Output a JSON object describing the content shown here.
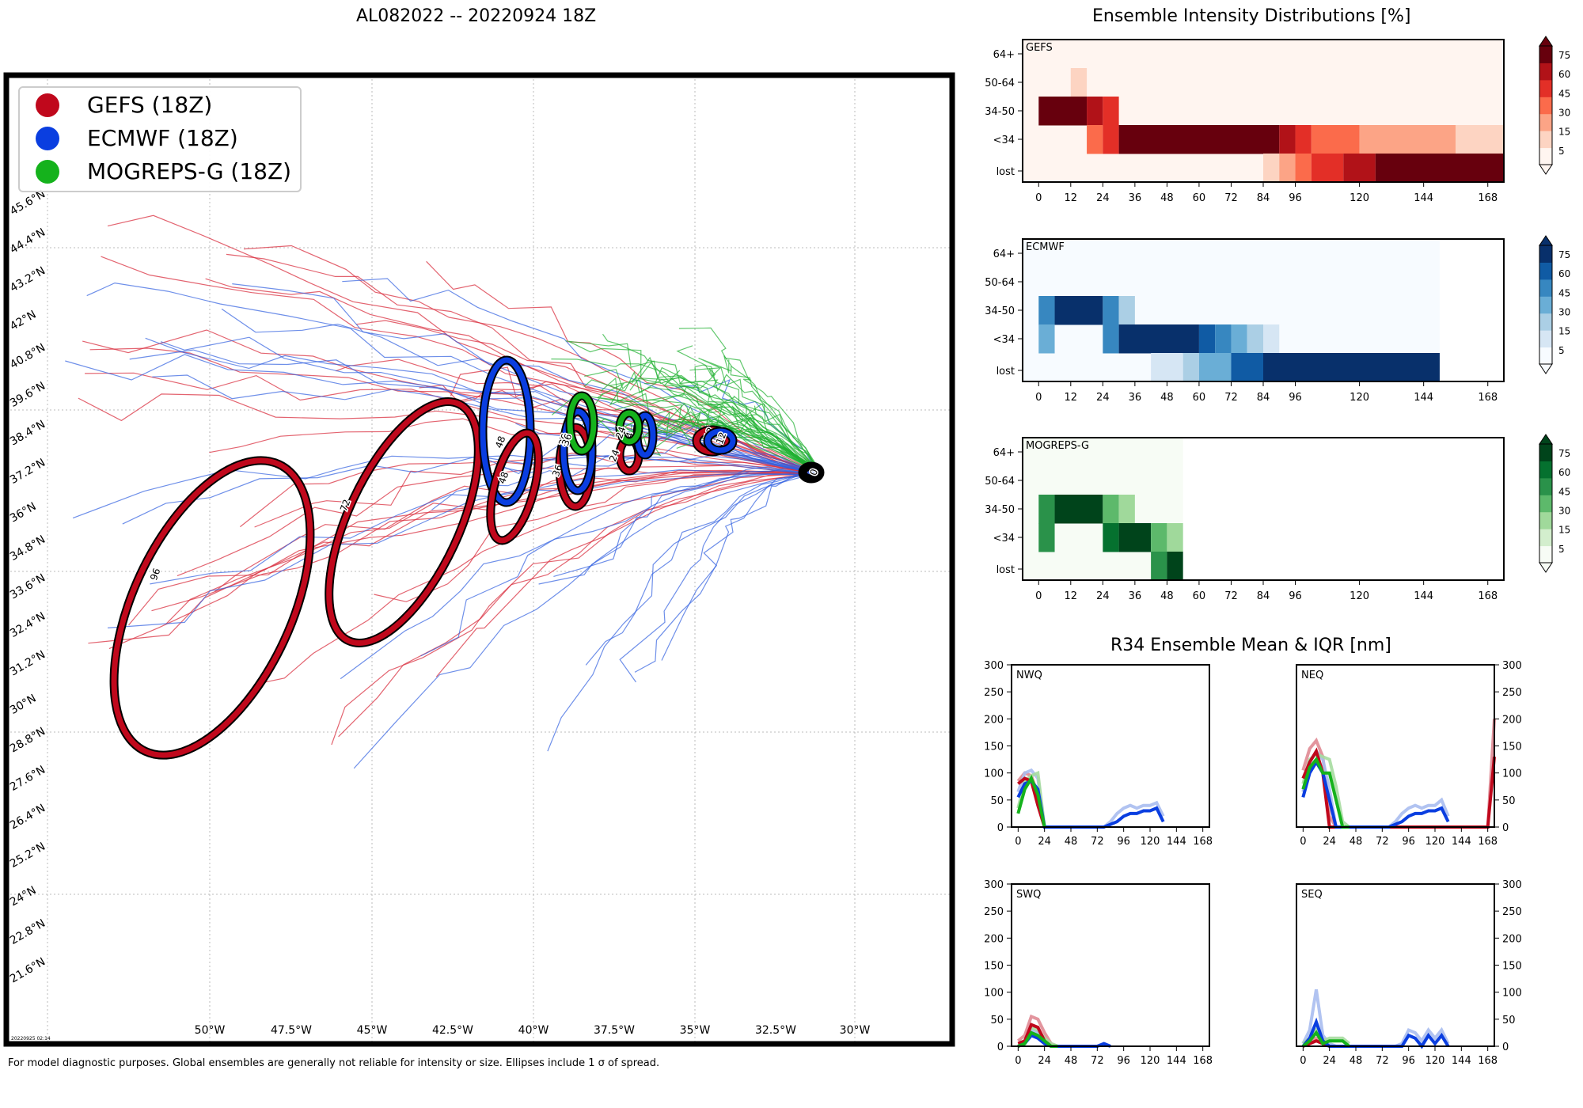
{
  "titles": {
    "main": "AL082022 -- 20220924 18Z",
    "intensity": "Ensemble Intensity Distributions [%]",
    "r34": "R34 Ensemble Mean & IQR [nm]"
  },
  "footer": "For model diagnostic purposes. Global ensembles are generally not reliable for intensity or size. Ellipses include 1 σ of spread.",
  "map": {
    "timestamp": "20220925 02:14",
    "legend": [
      {
        "label": "GEFS (18Z)",
        "color": "#c0081c"
      },
      {
        "label": "ECMWF (18Z)",
        "color": "#0a3ee0"
      },
      {
        "label": "MOGREPS-G (18Z)",
        "color": "#15b21c"
      }
    ],
    "lon_labels": [
      "50°W",
      "47.5°W",
      "45°W",
      "42.5°W",
      "40°W",
      "37.5°W",
      "35°W",
      "32.5°W",
      "30°W"
    ],
    "lat_labels": [
      "45.6°N",
      "44.4°N",
      "43.2°N",
      "42°N",
      "40.8°N",
      "39.6°N",
      "38.4°N",
      "37.2°N",
      "36°N",
      "34.8°N",
      "33.6°N",
      "32.4°N",
      "31.2°N",
      "30°N",
      "28.8°N",
      "27.6°N",
      "26.4°N",
      "25.2°N",
      "24°N",
      "22.8°N",
      "21.6°N"
    ],
    "ellipse_labels": [
      "96",
      "72",
      "48",
      "48",
      "36",
      "36",
      "36",
      "24",
      "24",
      "24",
      "12",
      "12",
      "0"
    ]
  },
  "chart_data": [
    {
      "type": "heatmap",
      "panel": "GEFS",
      "title": "GEFS",
      "colormap": "Reds",
      "x_ticks": [
        "0",
        "12",
        "24",
        "36",
        "48",
        "60",
        "72",
        "84",
        "96",
        "120",
        "144",
        "168"
      ],
      "y_categories": [
        "64+",
        "50-64",
        "34-50",
        "<34",
        "lost"
      ],
      "colorbar_ticks": [
        "5",
        "15",
        "30",
        "45",
        "60",
        "75"
      ],
      "cells": [
        {
          "row": "50-64",
          "from": 12,
          "to": 18,
          "value": 10
        },
        {
          "row": "34-50",
          "from": 0,
          "to": 18,
          "value": 90
        },
        {
          "row": "34-50",
          "from": 18,
          "to": 24,
          "value": 70
        },
        {
          "row": "34-50",
          "from": 24,
          "to": 30,
          "value": 55
        },
        {
          "row": "<34",
          "from": 18,
          "to": 24,
          "value": 40
        },
        {
          "row": "<34",
          "from": 24,
          "to": 30,
          "value": 55
        },
        {
          "row": "<34",
          "from": 30,
          "to": 90,
          "value": 90
        },
        {
          "row": "<34",
          "from": 90,
          "to": 96,
          "value": 70
        },
        {
          "row": "<34",
          "from": 96,
          "to": 102,
          "value": 55
        },
        {
          "row": "<34",
          "from": 102,
          "to": 120,
          "value": 40
        },
        {
          "row": "<34",
          "from": 120,
          "to": 156,
          "value": 25
        },
        {
          "row": "<34",
          "from": 156,
          "to": 174,
          "value": 10
        },
        {
          "row": "lost",
          "from": 84,
          "to": 90,
          "value": 10
        },
        {
          "row": "lost",
          "from": 90,
          "to": 96,
          "value": 25
        },
        {
          "row": "lost",
          "from": 96,
          "to": 102,
          "value": 40
        },
        {
          "row": "lost",
          "from": 102,
          "to": 114,
          "value": 55
        },
        {
          "row": "lost",
          "from": 114,
          "to": 126,
          "value": 70
        },
        {
          "row": "lost",
          "from": 126,
          "to": 174,
          "value": 90
        }
      ]
    },
    {
      "type": "heatmap",
      "panel": "ECMWF",
      "title": "ECMWF",
      "colormap": "Blues",
      "x_ticks": [
        "0",
        "12",
        "24",
        "36",
        "48",
        "60",
        "72",
        "84",
        "96",
        "120",
        "144",
        "168"
      ],
      "y_categories": [
        "64+",
        "50-64",
        "34-50",
        "<34",
        "lost"
      ],
      "colorbar_ticks": [
        "5",
        "15",
        "30",
        "45",
        "60",
        "75"
      ],
      "cells": [
        {
          "row": "34-50",
          "from": 0,
          "to": 6,
          "value": 55
        },
        {
          "row": "34-50",
          "from": 6,
          "to": 24,
          "value": 90
        },
        {
          "row": "34-50",
          "from": 24,
          "to": 30,
          "value": 55
        },
        {
          "row": "34-50",
          "from": 30,
          "to": 36,
          "value": 25
        },
        {
          "row": "<34",
          "from": 0,
          "to": 6,
          "value": 40
        },
        {
          "row": "<34",
          "from": 24,
          "to": 30,
          "value": 55
        },
        {
          "row": "<34",
          "from": 30,
          "to": 60,
          "value": 90
        },
        {
          "row": "<34",
          "from": 60,
          "to": 66,
          "value": 70
        },
        {
          "row": "<34",
          "from": 66,
          "to": 72,
          "value": 55
        },
        {
          "row": "<34",
          "from": 72,
          "to": 78,
          "value": 40
        },
        {
          "row": "<34",
          "from": 78,
          "to": 84,
          "value": 25
        },
        {
          "row": "<34",
          "from": 84,
          "to": 90,
          "value": 10
        },
        {
          "row": "lost",
          "from": 42,
          "to": 54,
          "value": 10
        },
        {
          "row": "lost",
          "from": 54,
          "to": 60,
          "value": 25
        },
        {
          "row": "lost",
          "from": 60,
          "to": 72,
          "value": 40
        },
        {
          "row": "lost",
          "from": 72,
          "to": 84,
          "value": 70
        },
        {
          "row": "lost",
          "from": 84,
          "to": 150,
          "value": 90
        }
      ]
    },
    {
      "type": "heatmap",
      "panel": "MOGREPS-G",
      "title": "MOGREPS-G",
      "colormap": "Greens",
      "x_ticks": [
        "0",
        "12",
        "24",
        "36",
        "48",
        "60",
        "72",
        "84",
        "96",
        "120",
        "144",
        "168"
      ],
      "y_categories": [
        "64+",
        "50-64",
        "34-50",
        "<34",
        "lost"
      ],
      "colorbar_ticks": [
        "5",
        "15",
        "30",
        "45",
        "60",
        "75"
      ],
      "cells": [
        {
          "row": "34-50",
          "from": 0,
          "to": 6,
          "value": 55
        },
        {
          "row": "34-50",
          "from": 6,
          "to": 24,
          "value": 90
        },
        {
          "row": "34-50",
          "from": 24,
          "to": 30,
          "value": 40
        },
        {
          "row": "34-50",
          "from": 30,
          "to": 36,
          "value": 25
        },
        {
          "row": "<34",
          "from": 0,
          "to": 6,
          "value": 55
        },
        {
          "row": "<34",
          "from": 24,
          "to": 30,
          "value": 70
        },
        {
          "row": "<34",
          "from": 30,
          "to": 42,
          "value": 90
        },
        {
          "row": "<34",
          "from": 42,
          "to": 48,
          "value": 40
        },
        {
          "row": "<34",
          "from": 48,
          "to": 54,
          "value": 25
        },
        {
          "row": "lost",
          "from": 42,
          "to": 48,
          "value": 55
        },
        {
          "row": "lost",
          "from": 48,
          "to": 54,
          "value": 90
        }
      ]
    },
    {
      "type": "line",
      "panel": "NWQ",
      "title": "NWQ",
      "x_ticks": [
        "0",
        "24",
        "48",
        "72",
        "96",
        "120",
        "144",
        "168"
      ],
      "y_ticks": [
        "0",
        "50",
        "100",
        "150",
        "200",
        "250",
        "300"
      ],
      "xlim": [
        -6,
        174
      ],
      "ylim": [
        0,
        300
      ],
      "series": [
        {
          "name": "GEFS",
          "x": [
            0,
            6,
            12,
            18,
            24
          ],
          "values": [
            80,
            90,
            85,
            40,
            0
          ],
          "iqr_high": [
            85,
            100,
            95,
            60,
            0
          ]
        },
        {
          "name": "ECMWF",
          "x": [
            0,
            6,
            12,
            18,
            24,
            30,
            36,
            42,
            48,
            54,
            60,
            66,
            72,
            78,
            84,
            90,
            96,
            102,
            108,
            114,
            120,
            126,
            132
          ],
          "values": [
            55,
            80,
            85,
            70,
            0,
            0,
            0,
            0,
            0,
            0,
            0,
            0,
            0,
            0,
            5,
            10,
            20,
            25,
            25,
            30,
            30,
            35,
            10
          ],
          "iqr_high": [
            65,
            100,
            105,
            90,
            0,
            0,
            0,
            0,
            0,
            0,
            0,
            0,
            0,
            0,
            10,
            25,
            35,
            40,
            35,
            40,
            40,
            45,
            20
          ]
        },
        {
          "name": "MOGREPS-G",
          "x": [
            0,
            6,
            12,
            18,
            24
          ],
          "values": [
            25,
            70,
            90,
            60,
            0
          ],
          "iqr_high": [
            35,
            85,
            95,
            100,
            0
          ]
        }
      ]
    },
    {
      "type": "line",
      "panel": "NEQ",
      "title": "NEQ",
      "x_ticks": [
        "0",
        "24",
        "48",
        "72",
        "96",
        "120",
        "144",
        "168"
      ],
      "y_ticks": [
        "0",
        "50",
        "100",
        "150",
        "200",
        "250",
        "300"
      ],
      "xlim": [
        -6,
        174
      ],
      "ylim": [
        0,
        300
      ],
      "series": [
        {
          "name": "GEFS",
          "x": [
            0,
            6,
            12,
            18,
            24,
            30,
            36,
            42,
            168,
            174
          ],
          "values": [
            90,
            120,
            140,
            100,
            0,
            0,
            0,
            0,
            0,
            130
          ],
          "iqr_high": [
            105,
            145,
            160,
            130,
            20,
            0,
            0,
            0,
            0,
            200
          ]
        },
        {
          "name": "ECMWF",
          "x": [
            0,
            6,
            12,
            18,
            24,
            30,
            36,
            42,
            48,
            54,
            60,
            66,
            72,
            78,
            84,
            90,
            96,
            102,
            108,
            114,
            120,
            126,
            132
          ],
          "values": [
            55,
            100,
            120,
            100,
            50,
            0,
            0,
            0,
            0,
            0,
            0,
            0,
            0,
            0,
            5,
            10,
            20,
            25,
            25,
            30,
            30,
            35,
            10
          ],
          "iqr_high": [
            65,
            120,
            140,
            125,
            70,
            0,
            0,
            0,
            0,
            0,
            0,
            0,
            0,
            0,
            10,
            25,
            35,
            40,
            35,
            40,
            40,
            50,
            20
          ]
        },
        {
          "name": "MOGREPS-G",
          "x": [
            0,
            6,
            12,
            18,
            24,
            30,
            36,
            42
          ],
          "values": [
            70,
            110,
            125,
            100,
            100,
            50,
            0,
            0
          ],
          "iqr_high": [
            80,
            125,
            135,
            130,
            125,
            75,
            10,
            0
          ]
        }
      ]
    },
    {
      "type": "line",
      "panel": "SWQ",
      "title": "SWQ",
      "x_ticks": [
        "0",
        "24",
        "48",
        "72",
        "96",
        "120",
        "144",
        "168"
      ],
      "y_ticks": [
        "0",
        "50",
        "100",
        "150",
        "200",
        "250",
        "300"
      ],
      "xlim": [
        -6,
        174
      ],
      "ylim": [
        0,
        300
      ],
      "series": [
        {
          "name": "GEFS",
          "x": [
            0,
            6,
            12,
            18,
            24,
            30,
            36
          ],
          "values": [
            5,
            10,
            40,
            35,
            10,
            0,
            0
          ],
          "iqr_high": [
            10,
            20,
            55,
            50,
            25,
            5,
            0
          ]
        },
        {
          "name": "ECMWF",
          "x": [
            0,
            6,
            12,
            18,
            24,
            30,
            36,
            42,
            48,
            54,
            60,
            66,
            72,
            78,
            84
          ],
          "values": [
            0,
            5,
            20,
            15,
            5,
            0,
            0,
            0,
            0,
            0,
            0,
            0,
            0,
            5,
            0
          ],
          "iqr_high": [
            0,
            10,
            30,
            25,
            10,
            0,
            0,
            0,
            0,
            0,
            0,
            0,
            0,
            5,
            0
          ]
        },
        {
          "name": "MOGREPS-G",
          "x": [
            0,
            6,
            12,
            18,
            24,
            30,
            36
          ],
          "values": [
            0,
            5,
            25,
            20,
            10,
            0,
            0
          ],
          "iqr_high": [
            0,
            10,
            35,
            30,
            15,
            5,
            0
          ]
        }
      ]
    },
    {
      "type": "line",
      "panel": "SEQ",
      "title": "SEQ",
      "x_ticks": [
        "0",
        "24",
        "48",
        "72",
        "96",
        "120",
        "144",
        "168"
      ],
      "y_ticks": [
        "0",
        "50",
        "100",
        "150",
        "200",
        "250",
        "300"
      ],
      "xlim": [
        -6,
        174
      ],
      "ylim": [
        0,
        300
      ],
      "series": [
        {
          "name": "GEFS",
          "x": [
            0,
            6,
            12,
            18,
            24
          ],
          "values": [
            0,
            5,
            10,
            5,
            0
          ],
          "iqr_high": [
            0,
            10,
            15,
            10,
            0
          ]
        },
        {
          "name": "ECMWF",
          "x": [
            0,
            6,
            12,
            18,
            24,
            30,
            36,
            42,
            48,
            54,
            60,
            66,
            72,
            78,
            84,
            90,
            96,
            102,
            108,
            114,
            120,
            126,
            132
          ],
          "values": [
            0,
            15,
            45,
            10,
            0,
            0,
            0,
            0,
            0,
            0,
            0,
            0,
            0,
            0,
            0,
            0,
            20,
            15,
            0,
            20,
            5,
            20,
            0
          ],
          "iqr_high": [
            5,
            30,
            105,
            20,
            5,
            0,
            0,
            0,
            0,
            0,
            0,
            0,
            0,
            0,
            0,
            5,
            30,
            25,
            10,
            30,
            15,
            30,
            5
          ]
        },
        {
          "name": "MOGREPS-G",
          "x": [
            0,
            6,
            12,
            18,
            24,
            30,
            36,
            42
          ],
          "values": [
            0,
            10,
            25,
            5,
            10,
            10,
            10,
            0
          ],
          "iqr_high": [
            5,
            15,
            30,
            10,
            15,
            15,
            15,
            5
          ]
        }
      ]
    }
  ]
}
